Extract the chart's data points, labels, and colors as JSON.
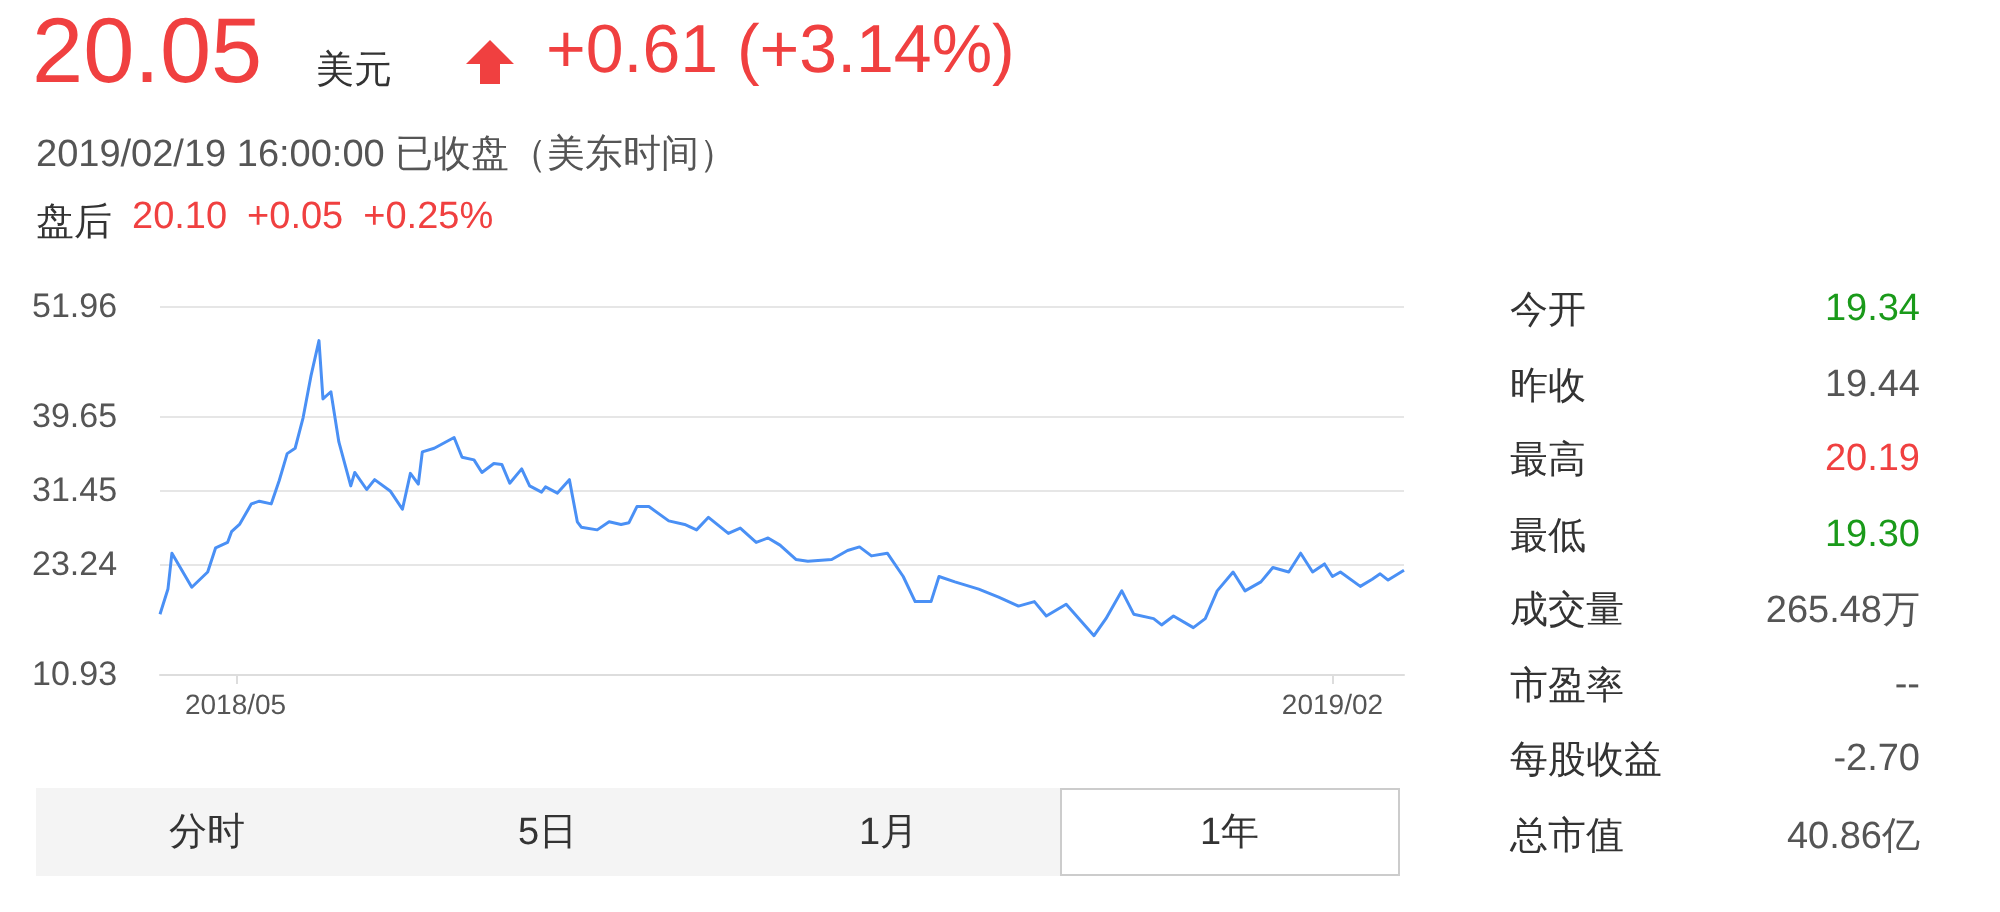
{
  "chart_data": {
    "type": "line",
    "title": "20.05",
    "subtitle": "2019/02/19 16:00:00 已收盘（美东时间）",
    "annotations": [
      "美元",
      "+0.61 (+3.14%)",
      "盘后",
      "20.10",
      "+0.05",
      "+0.25%",
      "今开",
      "19.34",
      "昨收",
      "19.44",
      "最高",
      "20.19",
      "最低",
      "19.30",
      "成交量",
      "265.48万",
      "市盈率",
      "--",
      "每股收益",
      "-2.70",
      "总市值",
      "40.86亿",
      "分时",
      "5日",
      "1月",
      "1年"
    ],
    "x": [
      "2018-04-12",
      "2018-04-14",
      "2018-04-15",
      "2018-04-20",
      "2018-04-24",
      "2018-04-26",
      "2018-04-29",
      "2018-04-30",
      "2018-05-02",
      "2018-05-05",
      "2018-05-07",
      "2018-05-10",
      "2018-05-12",
      "2018-05-14",
      "2018-05-16",
      "2018-05-18",
      "2018-05-20",
      "2018-05-22",
      "2018-05-23",
      "2018-05-25",
      "2018-05-27",
      "2018-05-30",
      "2018-05-31",
      "2018-06-03",
      "2018-06-05",
      "2018-06-09",
      "2018-06-12",
      "2018-06-14",
      "2018-06-16",
      "2018-06-17",
      "2018-06-20",
      "2018-06-25",
      "2018-06-27",
      "2018-06-30",
      "2018-07-02",
      "2018-07-05",
      "2018-07-07",
      "2018-07-09",
      "2018-07-12",
      "2018-07-14",
      "2018-07-17",
      "2018-07-18",
      "2018-07-21",
      "2018-07-24",
      "2018-07-26",
      "2018-07-27",
      "2018-07-31",
      "2018-08-03",
      "2018-08-06",
      "2018-08-08",
      "2018-08-10",
      "2018-08-13",
      "2018-08-18",
      "2018-08-22",
      "2018-08-25",
      "2018-08-28",
      "2018-09-02",
      "2018-09-05",
      "2018-09-09",
      "2018-09-12",
      "2018-09-15",
      "2018-09-19",
      "2018-09-22",
      "2018-09-28",
      "2018-10-02",
      "2018-10-05",
      "2018-10-08",
      "2018-10-12",
      "2018-10-16",
      "2018-10-19",
      "2018-10-23",
      "2018-10-25",
      "2018-10-29",
      "2018-11-04",
      "2018-11-09",
      "2018-11-14",
      "2018-11-18",
      "2018-11-21",
      "2018-11-26",
      "2018-12-03",
      "2018-12-06",
      "2018-12-10",
      "2018-12-13",
      "2018-12-18",
      "2018-12-20",
      "2018-12-23",
      "2018-12-28",
      "2018-12-31",
      "2019-01-03",
      "2019-01-07",
      "2019-01-10",
      "2019-01-14",
      "2019-01-17",
      "2019-01-21",
      "2019-01-24",
      "2019-01-27",
      "2019-01-30",
      "2019-02-01",
      "2019-02-03",
      "2019-02-08",
      "2019-02-11",
      "2019-02-13",
      "2019-02-15",
      "2019-02-19"
    ],
    "series": [
      {
        "color": "#4a90f5",
        "values": [
          17.6,
          20.4,
          24.4,
          20.6,
          22.3,
          25.0,
          25.6,
          26.8,
          27.6,
          29.9,
          30.2,
          29.9,
          32.5,
          35.5,
          36.1,
          39.5,
          44.2,
          48.1,
          41.6,
          42.4,
          36.8,
          31.9,
          33.4,
          31.5,
          32.6,
          31.3,
          29.3,
          33.3,
          32.1,
          35.7,
          36.1,
          37.3,
          35.1,
          34.8,
          33.4,
          34.4,
          34.3,
          32.2,
          33.8,
          31.9,
          31.2,
          31.8,
          31.1,
          32.6,
          27.9,
          27.3,
          27.0,
          27.9,
          27.6,
          27.8,
          29.6,
          29.6,
          28.0,
          27.6,
          27.0,
          28.4,
          26.6,
          27.2,
          25.6,
          26.1,
          25.3,
          23.7,
          23.5,
          23.7,
          24.7,
          25.1,
          24.1,
          24.4,
          21.8,
          19.0,
          19.0,
          21.8,
          21.2,
          20.4,
          19.5,
          18.5,
          19.0,
          17.4,
          18.7,
          15.2,
          17.1,
          20.2,
          17.6,
          17.1,
          16.4,
          17.4,
          16.1,
          17.1,
          20.2,
          22.3,
          20.2,
          21.2,
          22.8,
          22.3,
          24.4,
          22.3,
          23.2,
          21.8,
          22.3,
          20.7,
          21.5,
          22.1,
          21.4,
          22.5
        ]
      }
    ],
    "xlim": [
      "2018-04-12",
      "2019-02-19"
    ],
    "xticks": [
      {
        "value": "2018-05-01",
        "label": "2018/05"
      },
      {
        "value": "2019-02-01",
        "label": "2019/02"
      }
    ],
    "ylim": [
      10.93,
      51.96
    ],
    "yticks": [
      10.93,
      23.24,
      31.45,
      39.65,
      51.96
    ],
    "grid": "y",
    "marker": "none"
  }
}
